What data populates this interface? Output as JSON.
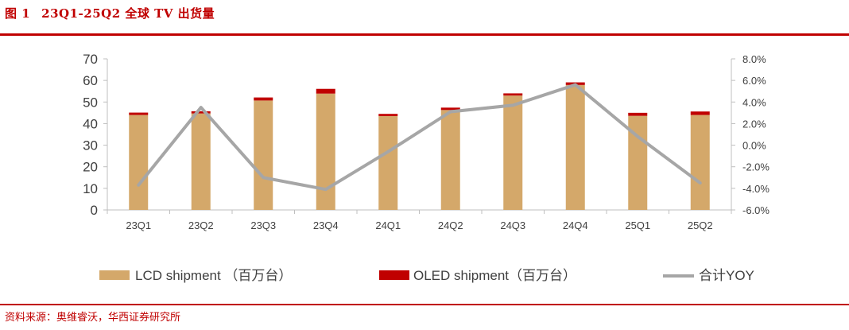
{
  "header": {
    "fig_label": "图 1",
    "fig_title": "23Q1-25Q2 全球 TV 出货量"
  },
  "footer": {
    "source": "资料来源：奥维睿沃，华西证券研究所"
  },
  "colors": {
    "accent": "#c00000",
    "lcd": "#d4a86a",
    "oled": "#c00000",
    "yoy": "#a6a6a6"
  },
  "chart_data": {
    "type": "bar",
    "categories": [
      "23Q1",
      "23Q2",
      "23Q3",
      "23Q4",
      "24Q1",
      "24Q2",
      "24Q3",
      "24Q4",
      "25Q1",
      "25Q2"
    ],
    "series": [
      {
        "name": "LCD shipment （百万台）",
        "type": "bar",
        "stack": "total",
        "axis": "left",
        "values": [
          44.0,
          44.7,
          50.7,
          53.9,
          43.5,
          46.3,
          53.0,
          57.9,
          43.6,
          44.0
        ]
      },
      {
        "name": "OLED shipment（百万台）",
        "type": "bar",
        "stack": "total",
        "axis": "left",
        "values": [
          1.1,
          1.0,
          1.4,
          2.2,
          1.0,
          1.1,
          1.0,
          1.2,
          1.4,
          1.6
        ]
      },
      {
        "name": "合计YOY",
        "type": "line",
        "axis": "right",
        "values": [
          -3.7,
          3.5,
          -3.0,
          -4.1,
          -0.6,
          3.1,
          3.7,
          5.6,
          0.8,
          -3.5
        ]
      }
    ],
    "y_left": {
      "ylim": [
        0,
        70
      ],
      "ticks": [
        "0",
        "10",
        "20",
        "30",
        "40",
        "50",
        "60",
        "70"
      ]
    },
    "y_right": {
      "ylim": [
        -6,
        8
      ],
      "ticks": [
        "-6.0%",
        "-4.0%",
        "-2.0%",
        "0.0%",
        "2.0%",
        "4.0%",
        "6.0%",
        "8.0%"
      ]
    },
    "legend_position": "bottom",
    "grid": false
  }
}
